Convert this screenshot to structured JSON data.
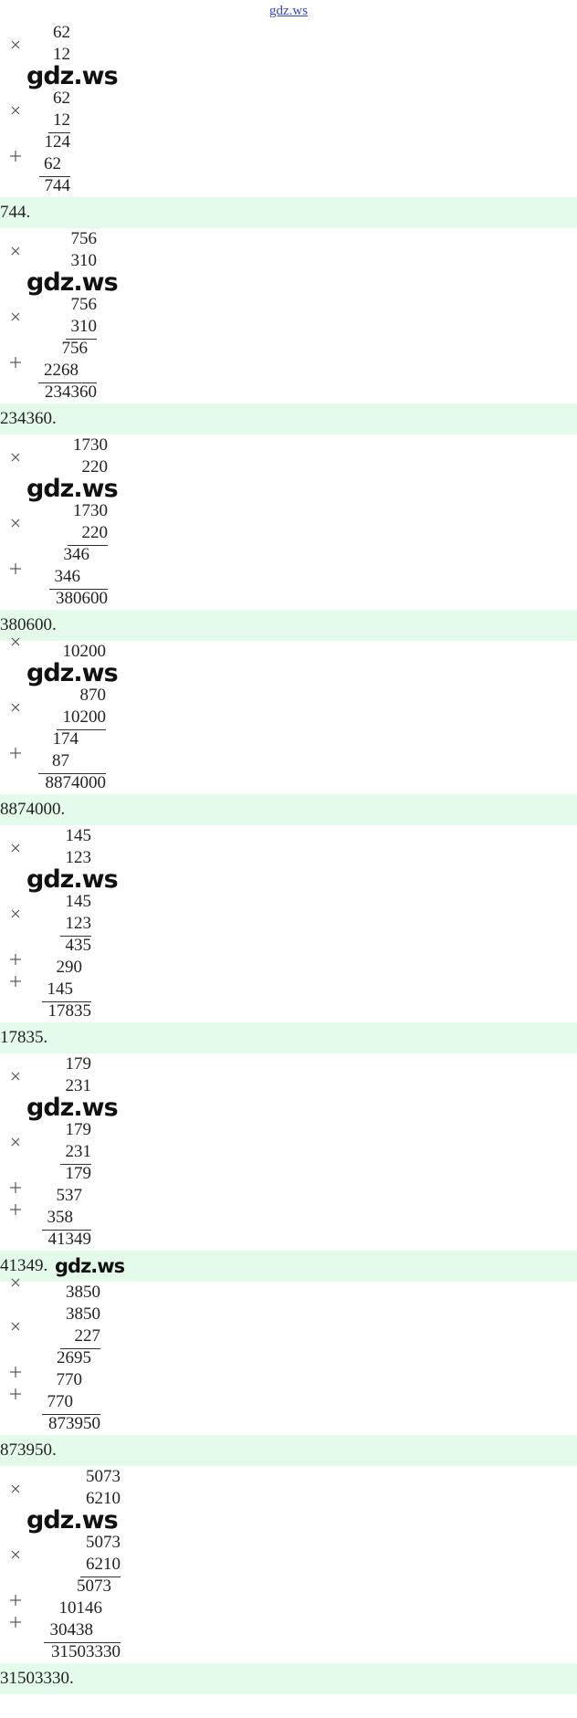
{
  "header": {
    "link": "gdz.ws"
  },
  "blocks": [
    {
      "top": [
        "62",
        "12"
      ],
      "watermark": "gdz.ws",
      "a": "62",
      "b": "12",
      "partials": [
        "124",
        "62"
      ],
      "result": "744",
      "answer": "744."
    },
    {
      "top": [
        "756",
        "310"
      ],
      "watermark": "gdz.ws",
      "a": "756",
      "b": "310",
      "partials": [
        "756",
        "2268"
      ],
      "result": "234360",
      "answer": "234360."
    },
    {
      "top": [
        "1730",
        "220"
      ],
      "watermark": "gdz.ws",
      "a": "1730",
      "b": "220",
      "partials": [
        "346",
        "346"
      ],
      "result": "380600",
      "answer": "380600."
    },
    {
      "top": [
        "10200"
      ],
      "watermark": "gdz.ws",
      "a": "870",
      "b": "10200",
      "partials": [
        "174",
        "87"
      ],
      "result": "8874000",
      "answer": "8874000."
    },
    {
      "top": [
        "145",
        "123"
      ],
      "watermark": "gdz.ws",
      "a": "145",
      "b": "123",
      "partials": [
        "435",
        "290",
        "145"
      ],
      "result": "17835",
      "answer": "17835."
    },
    {
      "top": [
        "179",
        "231"
      ],
      "watermark": "gdz.ws",
      "a": "179",
      "b": "231",
      "partials": [
        "179",
        "537",
        "358"
      ],
      "result": "41349",
      "answer": "41349.",
      "answer_watermark": "gdz.ws"
    },
    {
      "top": [
        "3850"
      ],
      "a": "3850",
      "b": "227",
      "partials": [
        "2695",
        "770",
        "770"
      ],
      "result": "873950",
      "answer": "873950."
    },
    {
      "top": [
        "5073",
        "6210"
      ],
      "watermark": "gdz.ws",
      "a": "5073",
      "b": "6210",
      "partials": [
        "5073",
        "10146",
        "30438"
      ],
      "result": "31503330",
      "answer": "31503330."
    }
  ]
}
